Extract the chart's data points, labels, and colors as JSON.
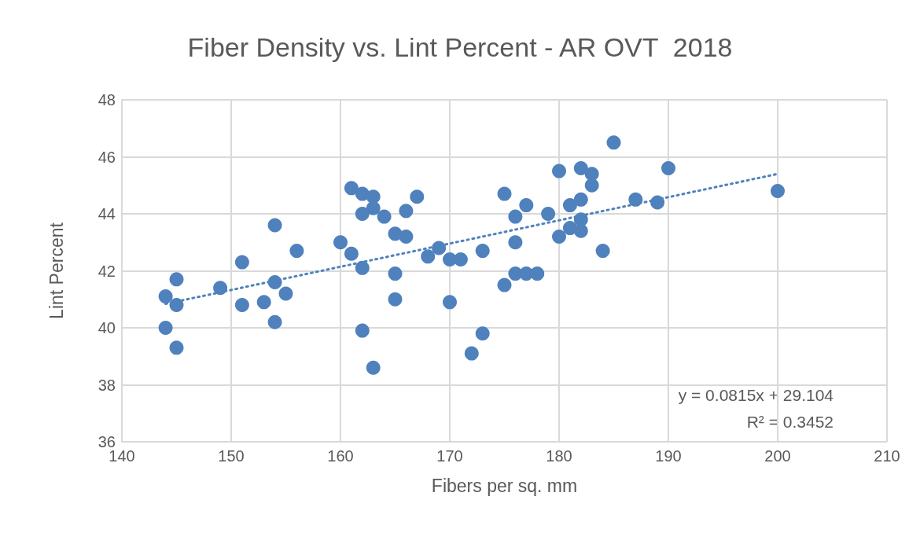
{
  "chart_data": {
    "type": "scatter",
    "title": "Fiber Density vs. Lint Percent - AR OVT  2018",
    "xlabel": "Fibers per sq. mm",
    "ylabel": "Lint Percent",
    "xlim": [
      140,
      210
    ],
    "xticks": [
      140,
      150,
      160,
      170,
      180,
      190,
      200,
      210
    ],
    "ylim": [
      36,
      48
    ],
    "yticks": [
      36,
      38,
      40,
      42,
      44,
      46,
      48
    ],
    "grid": true,
    "marker": "circle",
    "series": [
      {
        "color": "#4f81bd",
        "x": [
          144,
          144,
          145,
          145,
          145,
          149,
          151,
          151,
          153,
          154,
          154,
          154,
          155,
          156,
          160,
          161,
          161,
          162,
          162,
          162,
          162,
          163,
          163,
          163,
          164,
          165,
          165,
          165,
          166,
          166,
          167,
          168,
          169,
          170,
          170,
          171,
          172,
          173,
          173,
          175,
          175,
          176,
          176,
          176,
          177,
          177,
          178,
          179,
          180,
          180,
          181,
          181,
          182,
          182,
          182,
          182,
          183,
          183,
          184,
          185,
          187,
          189,
          190,
          200
        ],
        "values": [
          41.1,
          40.0,
          41.7,
          40.8,
          39.3,
          41.4,
          42.3,
          40.8,
          40.9,
          43.6,
          41.6,
          40.2,
          41.2,
          42.7,
          43.0,
          44.9,
          42.6,
          44.7,
          44.0,
          42.1,
          39.9,
          44.6,
          44.2,
          38.6,
          43.9,
          43.3,
          41.9,
          41.0,
          44.1,
          43.2,
          44.6,
          42.5,
          42.8,
          42.4,
          40.9,
          42.4,
          39.1,
          42.7,
          39.8,
          44.7,
          41.5,
          43.9,
          43.0,
          41.9,
          44.3,
          41.9,
          41.9,
          44.0,
          45.5,
          43.2,
          44.3,
          43.5,
          45.6,
          44.5,
          43.8,
          43.4,
          45.4,
          45.0,
          42.7,
          46.5,
          44.5,
          44.4,
          45.6,
          44.8
        ]
      },
      {
        "type": "line",
        "color": "#4f81bd",
        "line_style": "dotted",
        "marker": "none",
        "x": [
          144,
          200
        ],
        "values": [
          40.84,
          45.4
        ]
      }
    ],
    "annotations": [
      "y = 0.0815x + 29.104",
      "R² = 0.3452"
    ]
  }
}
